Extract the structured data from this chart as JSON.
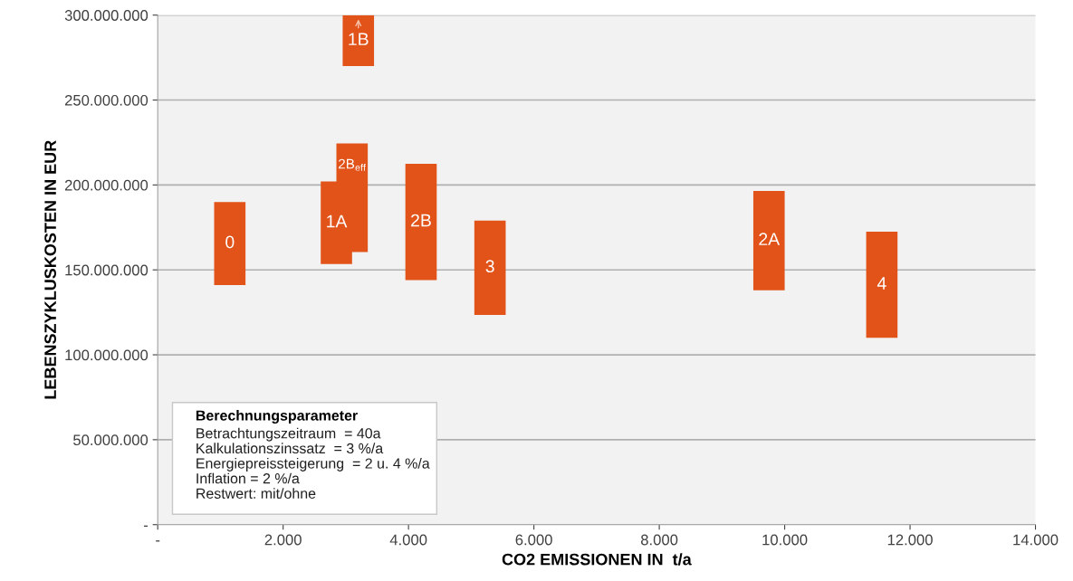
{
  "chart_data": {
    "type": "bar",
    "xlabel": "CO2 EMISSIONEN IN  t/a",
    "ylabel": "LEBENSZYKLUSKOSTEN IN EUR",
    "x": [
      1150,
      2850,
      3100,
      3200,
      4200,
      5300,
      9750,
      11550
    ],
    "base": [
      141000000,
      153500000,
      160500000,
      270000000,
      144000000,
      123500000,
      138000000,
      110000000
    ],
    "values": [
      49000000,
      48500000,
      64000000,
      30000000,
      68500000,
      55500000,
      58500000,
      62500000
    ],
    "color": "#e2531a",
    "annotations": [
      "0",
      "1A",
      "2B$_{eff}$",
      "1B",
      "2B",
      "3",
      "2A",
      "4",
      "Berechnungsparameter",
      "Betrachtungszeitraum  = 40a\nKalkulationszinssatz  = 3 %/a\nEnergiepreissteigerung  = 2 u. 4 %/a\nInflation = 2 %/a\nRestwert: mit/ohne"
    ],
    "xlim": [
      0,
      14000
    ],
    "xticks": [
      {
        "value": 0,
        "label": "-"
      },
      {
        "value": 2000,
        "label": "2.000"
      },
      {
        "value": 4000,
        "label": "4.000"
      },
      {
        "value": 6000,
        "label": "6.000"
      },
      {
        "value": 8000,
        "label": "8.000"
      },
      {
        "value": 10000,
        "label": "10.000"
      },
      {
        "value": 12000,
        "label": "12.000"
      },
      {
        "value": 14000,
        "label": "14.000"
      }
    ],
    "ylim": [
      0,
      300000000
    ],
    "yticks": [
      {
        "value": 0,
        "label": "-"
      },
      {
        "value": 50000000,
        "label": "50.000.000"
      },
      {
        "value": 100000000,
        "label": "100.000.000"
      },
      {
        "value": 150000000,
        "label": "150.000.000"
      },
      {
        "value": 200000000,
        "label": "200.000.000"
      },
      {
        "value": 250000000,
        "label": "250.000.000"
      },
      {
        "value": 300000000,
        "label": "300.000.000"
      }
    ],
    "grid": "y"
  }
}
